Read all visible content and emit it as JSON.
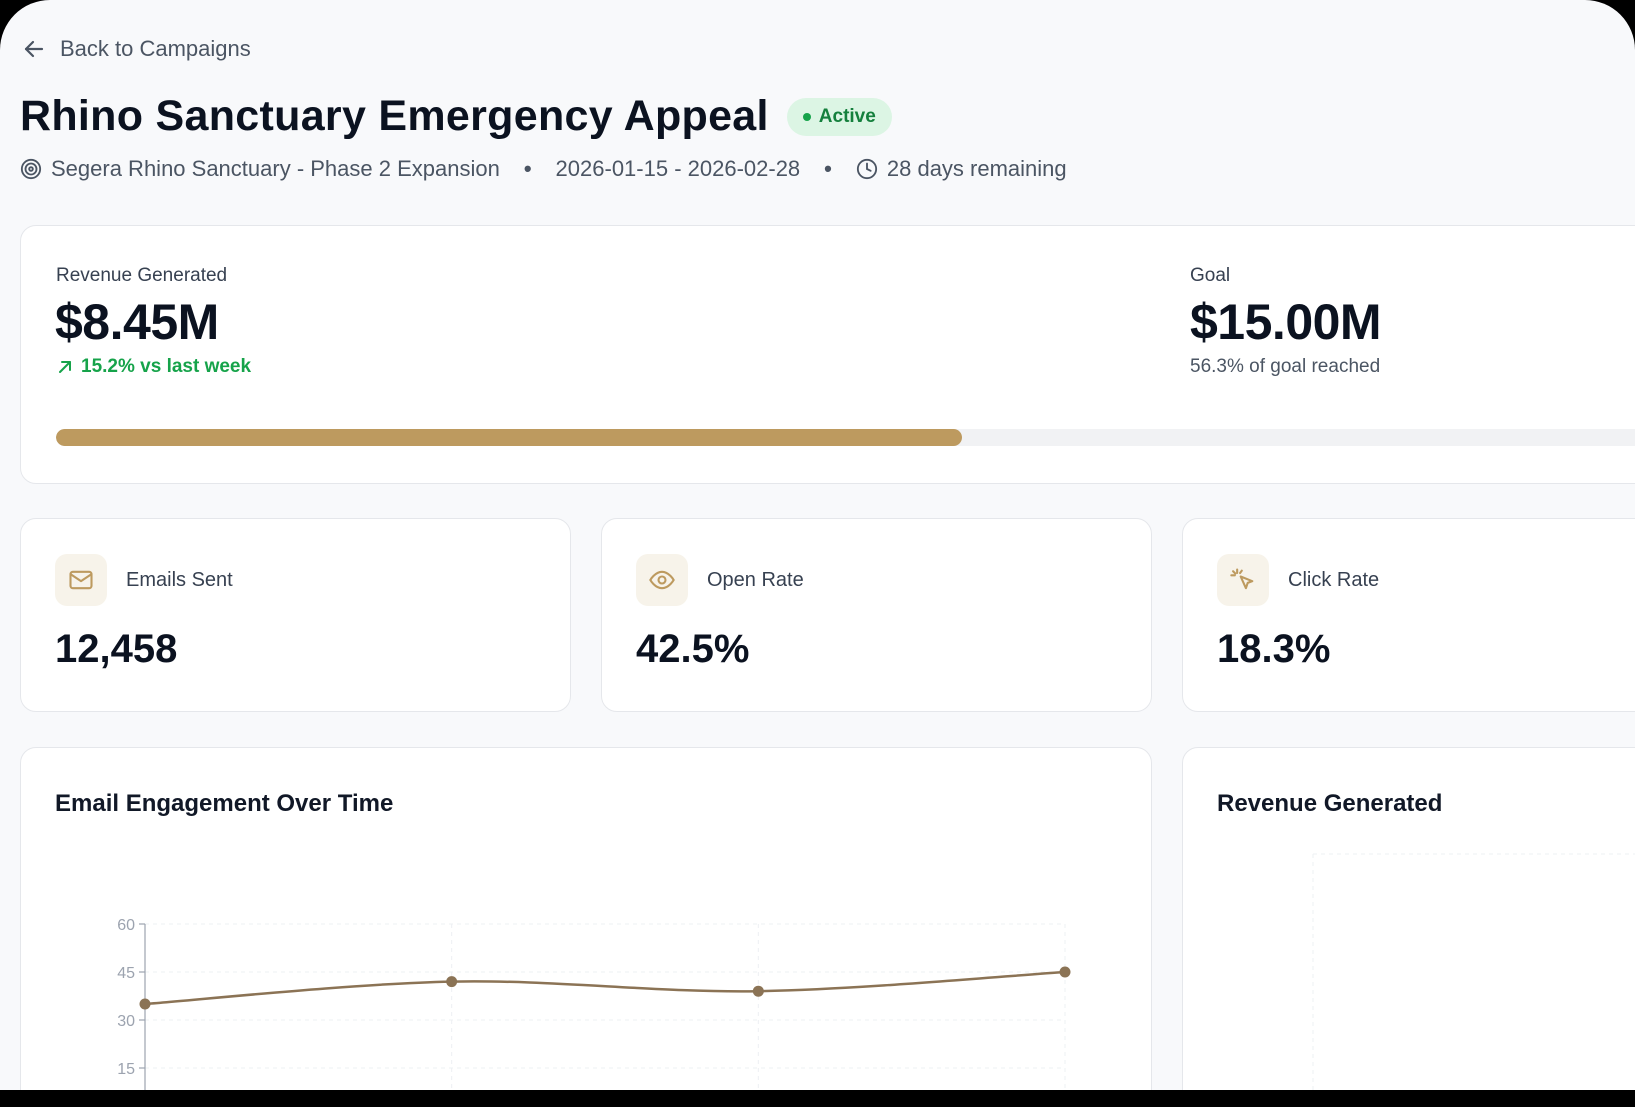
{
  "nav": {
    "back_label": "Back to Campaigns"
  },
  "header": {
    "title": "Rhino Sanctuary Emergency Appeal",
    "status": "Active",
    "project": "Segera Rhino Sanctuary - Phase 2 Expansion",
    "date_range": "2026-01-15 - 2026-02-28",
    "remaining": "28 days remaining",
    "separator": "•"
  },
  "revenue": {
    "label": "Revenue Generated",
    "value": "$8.45M",
    "delta": "15.2% vs last week",
    "goal_label": "Goal",
    "goal_value": "$15.00M",
    "goal_progress_text": "56.3% of goal reached",
    "progress_fraction": 0.563
  },
  "stats": [
    {
      "label": "Emails Sent",
      "value": "12,458",
      "icon": "mail-icon"
    },
    {
      "label": "Open Rate",
      "value": "42.5%",
      "icon": "eye-icon"
    },
    {
      "label": "Click Rate",
      "value": "18.3%",
      "icon": "pointer-click-icon"
    }
  ],
  "charts": {
    "engagement_title": "Email Engagement Over Time",
    "revenue_title": "Revenue Generated"
  },
  "colors": {
    "accent": "#bd9a5f",
    "line": "#8b7355",
    "success": "#16a34a",
    "badge_bg": "#dcf5e4"
  },
  "chart_data": {
    "type": "line",
    "title": "Email Engagement Over Time",
    "x": [
      1,
      2,
      3,
      4
    ],
    "y_ticks": [
      15,
      30,
      45,
      60
    ],
    "ylim": [
      15,
      60
    ],
    "grid": true,
    "series": [
      {
        "values": [
          35,
          42,
          39,
          45
        ]
      }
    ]
  }
}
